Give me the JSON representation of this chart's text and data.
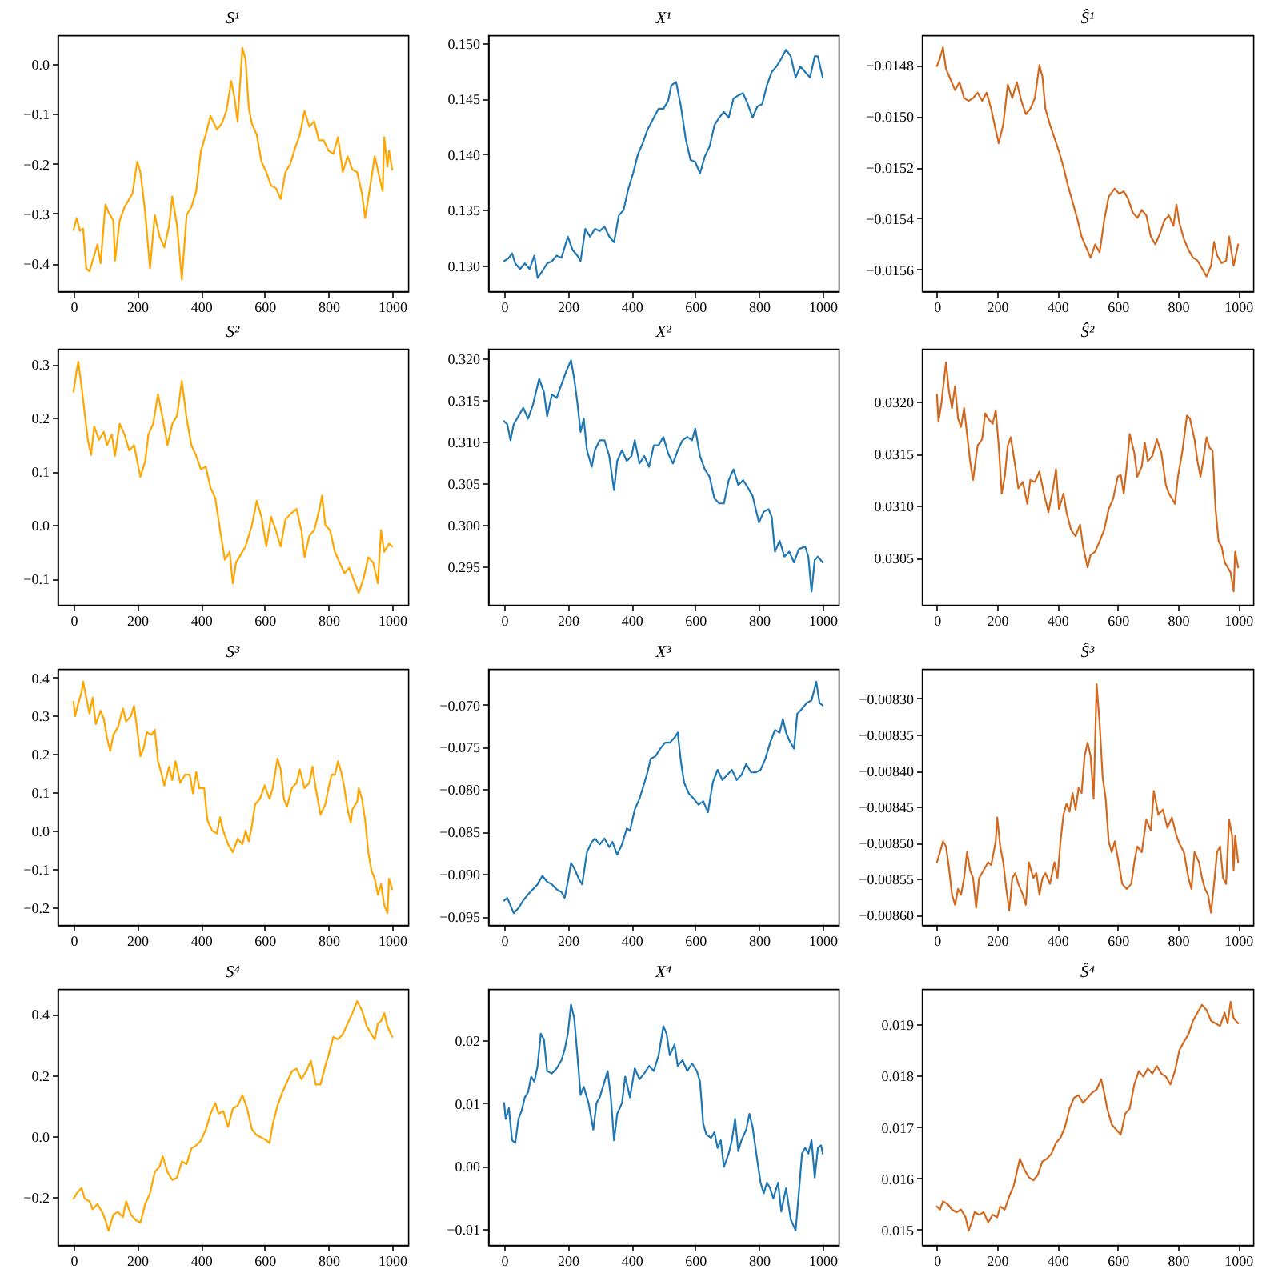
{
  "chart_data": [
    {
      "type": "line",
      "title": "S¹",
      "color": "#ffa500",
      "xlim": [
        -50,
        1050
      ],
      "xticks": [
        0,
        200,
        400,
        600,
        800,
        1000
      ],
      "ylim": [
        -0.456,
        0.058
      ],
      "yticks": [
        {
          "value": -0.4,
          "label": "−0.4"
        },
        {
          "value": -0.3,
          "label": "−0.3"
        },
        {
          "value": -0.2,
          "label": "−0.2"
        },
        {
          "value": -0.1,
          "label": "−0.1"
        },
        {
          "value": 0,
          "label": "0.0"
        }
      ],
      "x": [
        0,
        10,
        20,
        30,
        40,
        50,
        60,
        75,
        85,
        100,
        110,
        125,
        130,
        145,
        160,
        175,
        185,
        200,
        210,
        225,
        240,
        255,
        270,
        285,
        300,
        310,
        325,
        340,
        355,
        370,
        385,
        400,
        415,
        430,
        450,
        465,
        480,
        495,
        505,
        515,
        530,
        540,
        550,
        560,
        575,
        590,
        605,
        620,
        635,
        650,
        665,
        680,
        695,
        710,
        725,
        740,
        755,
        770,
        785,
        800,
        815,
        830,
        845,
        860,
        875,
        890,
        905,
        915,
        930,
        945,
        960,
        970,
        975,
        985,
        990,
        1000
      ],
      "values": [
        -0.333,
        -0.309,
        -0.335,
        -0.33,
        -0.41,
        -0.416,
        -0.395,
        -0.362,
        -0.4,
        -0.282,
        -0.298,
        -0.314,
        -0.395,
        -0.314,
        -0.287,
        -0.271,
        -0.26,
        -0.196,
        -0.217,
        -0.298,
        -0.41,
        -0.303,
        -0.346,
        -0.368,
        -0.325,
        -0.266,
        -0.325,
        -0.432,
        -0.303,
        -0.287,
        -0.255,
        -0.174,
        -0.142,
        -0.104,
        -0.131,
        -0.12,
        -0.094,
        -0.034,
        -0.067,
        -0.115,
        0.032,
        0.009,
        -0.088,
        -0.12,
        -0.142,
        -0.196,
        -0.217,
        -0.244,
        -0.249,
        -0.271,
        -0.217,
        -0.201,
        -0.169,
        -0.142,
        -0.094,
        -0.126,
        -0.115,
        -0.153,
        -0.153,
        -0.174,
        -0.18,
        -0.147,
        -0.217,
        -0.185,
        -0.212,
        -0.217,
        -0.26,
        -0.309,
        -0.249,
        -0.185,
        -0.228,
        -0.255,
        -0.147,
        -0.206,
        -0.174,
        -0.212
      ]
    },
    {
      "type": "line",
      "title": "X¹",
      "color": "#1f77b4",
      "xlim": [
        -50,
        1050
      ],
      "xticks": [
        0,
        200,
        400,
        600,
        800,
        1000
      ],
      "ylim": [
        0.1277,
        0.1507
      ],
      "yticks": [
        {
          "value": 0.13,
          "label": "0.130"
        },
        {
          "value": 0.135,
          "label": "0.135"
        },
        {
          "value": 0.14,
          "label": "0.140"
        },
        {
          "value": 0.145,
          "label": "0.145"
        },
        {
          "value": 0.15,
          "label": "0.150"
        }
      ],
      "x": [
        0,
        15,
        25,
        35,
        50,
        65,
        80,
        95,
        105,
        120,
        135,
        150,
        165,
        180,
        200,
        215,
        230,
        240,
        255,
        270,
        285,
        300,
        315,
        330,
        345,
        360,
        375,
        390,
        405,
        420,
        435,
        450,
        470,
        485,
        500,
        515,
        525,
        540,
        555,
        570,
        585,
        600,
        615,
        630,
        645,
        660,
        675,
        690,
        705,
        720,
        735,
        750,
        765,
        780,
        795,
        810,
        825,
        840,
        855,
        870,
        885,
        900,
        915,
        930,
        945,
        960,
        975,
        985,
        1000
      ],
      "values": [
        0.1304,
        0.1307,
        0.1311,
        0.1302,
        0.1297,
        0.1302,
        0.1297,
        0.1309,
        0.1289,
        0.1295,
        0.1302,
        0.1304,
        0.1309,
        0.1307,
        0.1326,
        0.1314,
        0.1309,
        0.1304,
        0.1333,
        0.1326,
        0.1333,
        0.1331,
        0.1335,
        0.1326,
        0.1321,
        0.1345,
        0.135,
        0.1369,
        0.1383,
        0.14,
        0.141,
        0.1422,
        0.1433,
        0.1441,
        0.1441,
        0.1448,
        0.1462,
        0.1465,
        0.1443,
        0.1414,
        0.1395,
        0.1393,
        0.1383,
        0.1398,
        0.1407,
        0.1426,
        0.1433,
        0.1438,
        0.1433,
        0.145,
        0.1453,
        0.1455,
        0.1445,
        0.1433,
        0.1443,
        0.1445,
        0.1462,
        0.1474,
        0.1479,
        0.1486,
        0.1494,
        0.1488,
        0.1469,
        0.1479,
        0.1474,
        0.1469,
        0.1488,
        0.1488,
        0.1469
      ]
    },
    {
      "type": "line",
      "title": "Ŝ¹",
      "color": "#d2691e",
      "xlim": [
        -50,
        1050
      ],
      "xticks": [
        0,
        200,
        400,
        600,
        800,
        1000
      ],
      "ylim": [
        -0.015685,
        -0.014683
      ],
      "yticks": [
        {
          "value": -0.0156,
          "label": "−0.0156"
        },
        {
          "value": -0.0154,
          "label": "−0.0154"
        },
        {
          "value": -0.0152,
          "label": "−0.0152"
        },
        {
          "value": -0.015,
          "label": "−0.0150"
        },
        {
          "value": -0.0148,
          "label": "−0.0148"
        }
      ],
      "x": [
        0,
        10,
        20,
        30,
        45,
        60,
        75,
        90,
        105,
        120,
        135,
        150,
        165,
        180,
        195,
        205,
        220,
        235,
        250,
        265,
        280,
        295,
        310,
        325,
        340,
        350,
        360,
        375,
        390,
        405,
        420,
        435,
        450,
        465,
        480,
        495,
        510,
        525,
        540,
        555,
        570,
        590,
        605,
        620,
        635,
        650,
        665,
        680,
        695,
        710,
        725,
        740,
        755,
        770,
        785,
        795,
        805,
        820,
        835,
        850,
        865,
        880,
        895,
        910,
        920,
        930,
        945,
        960,
        970,
        985,
        1000
      ],
      "values": [
        -0.014804,
        -0.014773,
        -0.014731,
        -0.014815,
        -0.014856,
        -0.014898,
        -0.014867,
        -0.014929,
        -0.01494,
        -0.014929,
        -0.014908,
        -0.01494,
        -0.014908,
        -0.014971,
        -0.015054,
        -0.015106,
        -0.015033,
        -0.014877,
        -0.014929,
        -0.014867,
        -0.01494,
        -0.014992,
        -0.014971,
        -0.014929,
        -0.0148,
        -0.014846,
        -0.014971,
        -0.015033,
        -0.015085,
        -0.015138,
        -0.0152,
        -0.015273,
        -0.015335,
        -0.015398,
        -0.015471,
        -0.015513,
        -0.015554,
        -0.015502,
        -0.015533,
        -0.015408,
        -0.015315,
        -0.015283,
        -0.015304,
        -0.015294,
        -0.015325,
        -0.015377,
        -0.015398,
        -0.015367,
        -0.015388,
        -0.015471,
        -0.015502,
        -0.01546,
        -0.015408,
        -0.015388,
        -0.015429,
        -0.015346,
        -0.015419,
        -0.015481,
        -0.015523,
        -0.015554,
        -0.015565,
        -0.015596,
        -0.015627,
        -0.015585,
        -0.015492,
        -0.015544,
        -0.015575,
        -0.015565,
        -0.015471,
        -0.015585,
        -0.015502
      ]
    },
    {
      "type": "line",
      "title": "S²",
      "color": "#ffa500",
      "xlim": [
        -50,
        1050
      ],
      "xticks": [
        0,
        200,
        400,
        600,
        800,
        1000
      ],
      "ylim": [
        -0.149,
        0.329
      ],
      "yticks": [
        {
          "value": -0.1,
          "label": "−0.1"
        },
        {
          "value": 0,
          "label": "0.0"
        },
        {
          "value": 0.1,
          "label": "0.1"
        },
        {
          "value": 0.2,
          "label": "0.2"
        },
        {
          "value": 0.3,
          "label": "0.3"
        }
      ],
      "x": [
        0,
        10,
        15,
        25,
        35,
        45,
        55,
        65,
        80,
        95,
        105,
        120,
        130,
        145,
        160,
        175,
        190,
        200,
        210,
        225,
        235,
        250,
        265,
        280,
        295,
        310,
        325,
        340,
        355,
        370,
        385,
        400,
        415,
        430,
        445,
        460,
        475,
        490,
        500,
        510,
        525,
        540,
        560,
        575,
        590,
        605,
        620,
        635,
        650,
        665,
        680,
        700,
        715,
        725,
        740,
        755,
        770,
        780,
        790,
        805,
        820,
        835,
        850,
        865,
        880,
        895,
        910,
        925,
        940,
        955,
        965,
        975,
        990,
        1000
      ],
      "values": [
        0.249,
        0.289,
        0.305,
        0.259,
        0.209,
        0.159,
        0.131,
        0.184,
        0.159,
        0.174,
        0.149,
        0.169,
        0.129,
        0.189,
        0.169,
        0.139,
        0.149,
        0.119,
        0.09,
        0.119,
        0.169,
        0.189,
        0.244,
        0.199,
        0.149,
        0.189,
        0.204,
        0.269,
        0.199,
        0.149,
        0.129,
        0.104,
        0.109,
        0.07,
        0.05,
        -0.01,
        -0.065,
        -0.05,
        -0.109,
        -0.07,
        -0.055,
        -0.04,
        0,
        0.045,
        0.015,
        -0.04,
        0.015,
        -0.01,
        -0.04,
        0.01,
        0.02,
        0.03,
        -0.01,
        -0.06,
        -0.02,
        -0.01,
        0.025,
        0.055,
        0,
        -0.01,
        -0.05,
        -0.07,
        -0.09,
        -0.08,
        -0.104,
        -0.127,
        -0.1,
        -0.06,
        -0.07,
        -0.109,
        -0.01,
        -0.05,
        -0.035,
        -0.04
      ]
    },
    {
      "type": "line",
      "title": "X²",
      "color": "#1f77b4",
      "xlim": [
        -50,
        1050
      ],
      "xticks": [
        0,
        200,
        400,
        600,
        800,
        1000
      ],
      "ylim": [
        0.2904,
        0.3212
      ],
      "yticks": [
        {
          "value": 0.295,
          "label": "0.295"
        },
        {
          "value": 0.3,
          "label": "0.300"
        },
        {
          "value": 0.305,
          "label": "0.305"
        },
        {
          "value": 0.31,
          "label": "0.310"
        },
        {
          "value": 0.315,
          "label": "0.315"
        },
        {
          "value": 0.32,
          "label": "0.320"
        }
      ],
      "x": [
        0,
        10,
        20,
        30,
        45,
        60,
        75,
        90,
        100,
        110,
        125,
        135,
        150,
        165,
        180,
        195,
        210,
        220,
        230,
        240,
        250,
        260,
        275,
        285,
        300,
        315,
        330,
        345,
        355,
        370,
        385,
        400,
        410,
        425,
        440,
        455,
        470,
        485,
        500,
        515,
        530,
        545,
        560,
        575,
        590,
        600,
        615,
        630,
        645,
        660,
        675,
        690,
        705,
        720,
        735,
        750,
        765,
        780,
        790,
        800,
        815,
        830,
        840,
        850,
        865,
        880,
        895,
        910,
        925,
        945,
        955,
        965,
        975,
        985,
        1000
      ],
      "values": [
        0.3125,
        0.3121,
        0.3102,
        0.3121,
        0.3131,
        0.3141,
        0.3128,
        0.3144,
        0.316,
        0.3176,
        0.316,
        0.3131,
        0.3157,
        0.3153,
        0.3169,
        0.3185,
        0.3198,
        0.3176,
        0.3147,
        0.3112,
        0.3128,
        0.309,
        0.307,
        0.309,
        0.3102,
        0.3102,
        0.3083,
        0.3042,
        0.3077,
        0.309,
        0.3077,
        0.3083,
        0.3102,
        0.3074,
        0.3083,
        0.307,
        0.3096,
        0.3096,
        0.3106,
        0.3086,
        0.3074,
        0.309,
        0.3102,
        0.3106,
        0.3102,
        0.3116,
        0.3083,
        0.3067,
        0.3058,
        0.3032,
        0.3026,
        0.3026,
        0.3054,
        0.3067,
        0.3048,
        0.3054,
        0.3045,
        0.3035,
        0.3019,
        0.3003,
        0.3016,
        0.3019,
        0.301,
        0.2968,
        0.2981,
        0.2962,
        0.2968,
        0.2955,
        0.2971,
        0.2974,
        0.2962,
        0.292,
        0.2958,
        0.2962,
        0.2955
      ]
    },
    {
      "type": "line",
      "title": "Ŝ²",
      "color": "#d2691e",
      "xlim": [
        -50,
        1050
      ],
      "xticks": [
        0,
        200,
        400,
        600,
        800,
        1000
      ],
      "ylim": [
        0.03005,
        0.03251
      ],
      "yticks": [
        {
          "value": 0.0305,
          "label": "0.0305"
        },
        {
          "value": 0.031,
          "label": "0.0310"
        },
        {
          "value": 0.0315,
          "label": "0.0315"
        },
        {
          "value": 0.032,
          "label": "0.0320"
        }
      ],
      "x": [
        0,
        5,
        15,
        25,
        30,
        40,
        50,
        60,
        70,
        80,
        90,
        100,
        110,
        120,
        135,
        150,
        160,
        170,
        185,
        195,
        205,
        215,
        225,
        235,
        245,
        260,
        270,
        285,
        300,
        310,
        325,
        340,
        355,
        370,
        385,
        395,
        405,
        420,
        430,
        445,
        460,
        475,
        485,
        500,
        510,
        525,
        540,
        555,
        570,
        585,
        600,
        610,
        620,
        630,
        640,
        655,
        665,
        680,
        690,
        700,
        715,
        730,
        745,
        760,
        770,
        780,
        790,
        800,
        815,
        830,
        840,
        855,
        865,
        875,
        885,
        895,
        905,
        915,
        925,
        935,
        945,
        955,
        965,
        975,
        985,
        990,
        1000
      ],
      "values": [
        0.03207,
        0.03181,
        0.03199,
        0.03225,
        0.03238,
        0.0321,
        0.03194,
        0.03215,
        0.03184,
        0.03176,
        0.03194,
        0.03169,
        0.03143,
        0.03125,
        0.03158,
        0.03164,
        0.03189,
        0.03184,
        0.03179,
        0.03192,
        0.03158,
        0.03112,
        0.03128,
        0.03158,
        0.03166,
        0.03138,
        0.03117,
        0.03123,
        0.03102,
        0.03125,
        0.03123,
        0.03133,
        0.03112,
        0.03094,
        0.03117,
        0.03135,
        0.03097,
        0.03112,
        0.03094,
        0.03077,
        0.03071,
        0.03082,
        0.03061,
        0.03041,
        0.03053,
        0.03056,
        0.03066,
        0.03077,
        0.03097,
        0.03107,
        0.03128,
        0.0313,
        0.03112,
        0.03138,
        0.03169,
        0.03151,
        0.03128,
        0.03138,
        0.03161,
        0.03143,
        0.03148,
        0.03164,
        0.03151,
        0.0312,
        0.03112,
        0.03107,
        0.03102,
        0.03128,
        0.03153,
        0.03187,
        0.03184,
        0.03164,
        0.03143,
        0.03128,
        0.03146,
        0.03166,
        0.03156,
        0.03153,
        0.03097,
        0.03066,
        0.03061,
        0.03046,
        0.03041,
        0.03036,
        0.03018,
        0.03056,
        0.03041
      ]
    },
    {
      "type": "line",
      "title": "S³",
      "color": "#ffa500",
      "xlim": [
        -50,
        1050
      ],
      "xticks": [
        0,
        200,
        400,
        600,
        800,
        1000
      ],
      "ylim": [
        -0.246,
        0.422
      ],
      "yticks": [
        {
          "value": -0.2,
          "label": "−0.2"
        },
        {
          "value": -0.1,
          "label": "−0.1"
        },
        {
          "value": 0,
          "label": "0.0"
        },
        {
          "value": 0.1,
          "label": "0.1"
        },
        {
          "value": 0.2,
          "label": "0.2"
        },
        {
          "value": 0.3,
          "label": "0.3"
        },
        {
          "value": 0.4,
          "label": "0.4"
        }
      ],
      "x": [
        0,
        5,
        15,
        25,
        30,
        40,
        50,
        60,
        70,
        85,
        95,
        105,
        115,
        125,
        140,
        155,
        165,
        180,
        190,
        200,
        210,
        220,
        230,
        245,
        255,
        265,
        275,
        285,
        300,
        310,
        320,
        335,
        350,
        365,
        375,
        385,
        395,
        410,
        420,
        435,
        450,
        460,
        470,
        485,
        500,
        515,
        530,
        540,
        550,
        560,
        570,
        585,
        600,
        615,
        625,
        640,
        650,
        660,
        670,
        685,
        700,
        710,
        725,
        740,
        750,
        760,
        775,
        790,
        800,
        810,
        820,
        830,
        840,
        850,
        860,
        870,
        875,
        890,
        895,
        905,
        915,
        925,
        935,
        945,
        955,
        965,
        975,
        985,
        990,
        1000
      ],
      "values": [
        0.336,
        0.299,
        0.333,
        0.361,
        0.389,
        0.347,
        0.306,
        0.347,
        0.278,
        0.313,
        0.292,
        0.243,
        0.208,
        0.25,
        0.271,
        0.319,
        0.285,
        0.299,
        0.326,
        0.264,
        0.194,
        0.215,
        0.257,
        0.25,
        0.264,
        0.181,
        0.153,
        0.118,
        0.167,
        0.132,
        0.181,
        0.125,
        0.146,
        0.146,
        0.097,
        0.153,
        0.111,
        0.111,
        0.028,
        0,
        -0.007,
        0.035,
        0,
        -0.035,
        -0.056,
        -0.021,
        -0.035,
        0,
        -0.028,
        0.014,
        0.069,
        0.083,
        0.118,
        0.083,
        0.111,
        0.188,
        0.16,
        0.083,
        0.063,
        0.111,
        0.125,
        0.16,
        0.111,
        0.125,
        0.167,
        0.111,
        0.042,
        0.069,
        0.111,
        0.146,
        0.146,
        0.181,
        0.153,
        0.111,
        0.056,
        0.021,
        0.056,
        0.076,
        0.111,
        0.083,
        0.028,
        -0.056,
        -0.104,
        -0.125,
        -0.167,
        -0.139,
        -0.194,
        -0.215,
        -0.125,
        -0.153
      ]
    },
    {
      "type": "line",
      "title": "X³",
      "color": "#1f77b4",
      "xlim": [
        -50,
        1050
      ],
      "xticks": [
        0,
        200,
        400,
        600,
        800,
        1000
      ],
      "ylim": [
        -0.096,
        -0.0658
      ],
      "yticks": [
        {
          "value": -0.095,
          "label": "−0.095"
        },
        {
          "value": -0.09,
          "label": "−0.090"
        },
        {
          "value": -0.085,
          "label": "−0.085"
        },
        {
          "value": -0.08,
          "label": "−0.080"
        },
        {
          "value": -0.075,
          "label": "−0.075"
        },
        {
          "value": -0.07,
          "label": "−0.070"
        }
      ],
      "x": [
        0,
        10,
        20,
        30,
        45,
        60,
        75,
        90,
        105,
        120,
        135,
        150,
        165,
        180,
        190,
        200,
        210,
        220,
        235,
        245,
        260,
        275,
        285,
        300,
        315,
        330,
        340,
        355,
        370,
        385,
        395,
        410,
        425,
        435,
        450,
        460,
        475,
        490,
        505,
        520,
        535,
        545,
        555,
        565,
        580,
        595,
        610,
        625,
        640,
        655,
        670,
        685,
        700,
        715,
        730,
        745,
        760,
        775,
        790,
        805,
        820,
        835,
        850,
        865,
        875,
        885,
        895,
        910,
        920,
        935,
        950,
        965,
        980,
        990,
        1000
      ],
      "values": [
        -0.0931,
        -0.0928,
        -0.0937,
        -0.0946,
        -0.094,
        -0.0931,
        -0.0924,
        -0.0918,
        -0.0912,
        -0.0902,
        -0.0909,
        -0.0912,
        -0.0918,
        -0.0921,
        -0.0928,
        -0.0909,
        -0.0887,
        -0.0893,
        -0.0906,
        -0.0912,
        -0.0874,
        -0.0862,
        -0.0858,
        -0.0865,
        -0.0858,
        -0.0868,
        -0.0862,
        -0.0877,
        -0.0865,
        -0.0846,
        -0.0849,
        -0.0824,
        -0.0811,
        -0.0799,
        -0.078,
        -0.0764,
        -0.0761,
        -0.0752,
        -0.0745,
        -0.0745,
        -0.0739,
        -0.0733,
        -0.0767,
        -0.0792,
        -0.0805,
        -0.0811,
        -0.0818,
        -0.0814,
        -0.0827,
        -0.0792,
        -0.0777,
        -0.0789,
        -0.0783,
        -0.0777,
        -0.0789,
        -0.0783,
        -0.077,
        -0.078,
        -0.078,
        -0.0777,
        -0.0764,
        -0.0745,
        -0.073,
        -0.0733,
        -0.0717,
        -0.0733,
        -0.0742,
        -0.0752,
        -0.0711,
        -0.0705,
        -0.0698,
        -0.0695,
        -0.0673,
        -0.0698,
        -0.0701
      ]
    },
    {
      "type": "line",
      "title": "Ŝ³",
      "color": "#d2691e",
      "xlim": [
        -50,
        1050
      ],
      "xticks": [
        0,
        200,
        400,
        600,
        800,
        1000
      ],
      "ylim": [
        -0.008614,
        -0.008259
      ],
      "yticks": [
        {
          "value": -0.0086,
          "label": "−0.00860"
        },
        {
          "value": -0.00855,
          "label": "−0.00855"
        },
        {
          "value": -0.0085,
          "label": "−0.00850"
        },
        {
          "value": -0.00845,
          "label": "−0.00845"
        },
        {
          "value": -0.0084,
          "label": "−0.00840"
        },
        {
          "value": -0.00835,
          "label": "−0.00835"
        },
        {
          "value": -0.0083,
          "label": "−0.00830"
        }
      ],
      "x": [
        0,
        10,
        20,
        30,
        40,
        50,
        60,
        70,
        80,
        90,
        100,
        110,
        120,
        130,
        140,
        155,
        170,
        180,
        195,
        200,
        210,
        220,
        230,
        240,
        250,
        260,
        270,
        285,
        295,
        305,
        320,
        330,
        340,
        350,
        360,
        375,
        390,
        400,
        410,
        420,
        430,
        440,
        450,
        460,
        470,
        480,
        490,
        500,
        510,
        520,
        530,
        540,
        550,
        560,
        570,
        580,
        590,
        600,
        615,
        630,
        645,
        655,
        665,
        680,
        695,
        710,
        720,
        735,
        750,
        765,
        780,
        795,
        805,
        820,
        835,
        845,
        855,
        870,
        880,
        890,
        900,
        910,
        920,
        930,
        940,
        950,
        960,
        970,
        980,
        985,
        990,
        1000
      ],
      "values": [
        -0.008527,
        -0.008513,
        -0.008498,
        -0.008505,
        -0.008535,
        -0.008572,
        -0.008586,
        -0.008564,
        -0.008572,
        -0.008549,
        -0.008513,
        -0.008538,
        -0.008549,
        -0.00859,
        -0.008549,
        -0.008538,
        -0.008527,
        -0.008531,
        -0.008498,
        -0.008465,
        -0.008505,
        -0.008527,
        -0.008564,
        -0.008594,
        -0.008549,
        -0.008542,
        -0.008557,
        -0.008572,
        -0.008586,
        -0.008527,
        -0.008549,
        -0.008542,
        -0.008572,
        -0.008549,
        -0.008542,
        -0.008557,
        -0.008527,
        -0.008549,
        -0.008498,
        -0.008461,
        -0.008446,
        -0.008457,
        -0.008431,
        -0.008454,
        -0.008424,
        -0.008431,
        -0.00838,
        -0.008361,
        -0.00838,
        -0.008439,
        -0.00828,
        -0.008335,
        -0.008409,
        -0.008439,
        -0.008498,
        -0.008513,
        -0.008498,
        -0.00852,
        -0.008557,
        -0.008564,
        -0.008557,
        -0.008527,
        -0.008505,
        -0.008513,
        -0.008468,
        -0.008483,
        -0.008428,
        -0.008461,
        -0.008454,
        -0.008479,
        -0.008465,
        -0.00849,
        -0.008501,
        -0.008513,
        -0.008549,
        -0.008564,
        -0.008513,
        -0.008527,
        -0.008549,
        -0.008564,
        -0.008572,
        -0.008597,
        -0.008557,
        -0.008513,
        -0.008505,
        -0.008549,
        -0.008557,
        -0.008468,
        -0.00849,
        -0.008538,
        -0.00849,
        -0.008527
      ]
    },
    {
      "type": "line",
      "title": "S⁴",
      "color": "#ffa500",
      "xlim": [
        -50,
        1050
      ],
      "xticks": [
        0,
        200,
        400,
        600,
        800,
        1000
      ],
      "ylim": [
        -0.357,
        0.482
      ],
      "yticks": [
        {
          "value": -0.2,
          "label": "−0.2"
        },
        {
          "value": 0,
          "label": "0.0"
        },
        {
          "value": 0.2,
          "label": "0.2"
        },
        {
          "value": 0.4,
          "label": "0.4"
        }
      ],
      "x": [
        0,
        10,
        25,
        35,
        50,
        60,
        75,
        90,
        100,
        110,
        125,
        140,
        155,
        165,
        180,
        195,
        210,
        225,
        240,
        255,
        270,
        280,
        295,
        310,
        325,
        340,
        355,
        370,
        385,
        400,
        415,
        430,
        445,
        455,
        470,
        485,
        500,
        515,
        530,
        545,
        560,
        575,
        590,
        605,
        615,
        625,
        640,
        655,
        670,
        685,
        700,
        715,
        730,
        745,
        760,
        775,
        790,
        800,
        815,
        830,
        845,
        860,
        875,
        890,
        905,
        920,
        935,
        945,
        955,
        965,
        975,
        985,
        1000
      ],
      "values": [
        -0.205,
        -0.188,
        -0.17,
        -0.205,
        -0.214,
        -0.24,
        -0.223,
        -0.249,
        -0.275,
        -0.31,
        -0.257,
        -0.249,
        -0.266,
        -0.214,
        -0.257,
        -0.275,
        -0.283,
        -0.223,
        -0.188,
        -0.118,
        -0.101,
        -0.066,
        -0.118,
        -0.144,
        -0.136,
        -0.083,
        -0.092,
        -0.04,
        -0.031,
        -0.014,
        0.021,
        0.073,
        0.108,
        0.073,
        0.082,
        0.03,
        0.09,
        0.099,
        0.134,
        0.09,
        0.021,
        0.003,
        -0.005,
        -0.014,
        -0.023,
        0.038,
        0.099,
        0.143,
        0.177,
        0.212,
        0.221,
        0.186,
        0.212,
        0.247,
        0.169,
        0.169,
        0.23,
        0.264,
        0.325,
        0.317,
        0.334,
        0.369,
        0.403,
        0.442,
        0.412,
        0.36,
        0.334,
        0.317,
        0.369,
        0.377,
        0.403,
        0.36,
        0.325
      ]
    },
    {
      "type": "line",
      "title": "X⁴",
      "color": "#1f77b4",
      "xlim": [
        -50,
        1050
      ],
      "xticks": [
        0,
        200,
        400,
        600,
        800,
        1000
      ],
      "ylim": [
        -0.0125,
        0.0281
      ],
      "yticks": [
        {
          "value": -0.01,
          "label": "−0.01"
        },
        {
          "value": 0,
          "label": "0.00"
        },
        {
          "value": 0.01,
          "label": "0.01"
        },
        {
          "value": 0.02,
          "label": "0.02"
        }
      ],
      "x": [
        0,
        5,
        15,
        25,
        35,
        45,
        55,
        65,
        75,
        85,
        95,
        105,
        115,
        125,
        135,
        150,
        165,
        180,
        190,
        200,
        210,
        220,
        230,
        240,
        250,
        265,
        280,
        290,
        300,
        315,
        325,
        335,
        345,
        355,
        370,
        380,
        395,
        410,
        425,
        440,
        455,
        470,
        485,
        500,
        510,
        520,
        535,
        545,
        560,
        575,
        590,
        605,
        615,
        625,
        635,
        650,
        660,
        670,
        680,
        690,
        705,
        715,
        725,
        735,
        745,
        760,
        770,
        780,
        795,
        805,
        815,
        825,
        835,
        845,
        860,
        870,
        885,
        900,
        915,
        925,
        935,
        945,
        955,
        965,
        975,
        985,
        995,
        1000
      ],
      "values": [
        0.01,
        0.0075,
        0.0092,
        0.0041,
        0.0037,
        0.0075,
        0.0088,
        0.0109,
        0.0117,
        0.0142,
        0.0134,
        0.0159,
        0.021,
        0.0201,
        0.0151,
        0.0147,
        0.0155,
        0.0168,
        0.0185,
        0.021,
        0.0256,
        0.0235,
        0.0176,
        0.0113,
        0.0126,
        0.01,
        0.0058,
        0.01,
        0.0109,
        0.0134,
        0.0151,
        0.0109,
        0.0041,
        0.0083,
        0.01,
        0.0142,
        0.0109,
        0.0155,
        0.0138,
        0.0147,
        0.0159,
        0.0151,
        0.0176,
        0.0222,
        0.021,
        0.0176,
        0.0193,
        0.0159,
        0.0168,
        0.0151,
        0.0163,
        0.0151,
        0.0134,
        0.0067,
        0.005,
        0.0045,
        0.0054,
        0.0029,
        0.0041,
        -0.0001,
        0.002,
        0.0041,
        0.0075,
        0.0024,
        0.0041,
        0.0058,
        0.0083,
        0.0062,
        0.0008,
        -0.0026,
        -0.0043,
        -0.0026,
        -0.0035,
        -0.0051,
        -0.0026,
        -0.0072,
        -0.0035,
        -0.0085,
        -0.0102,
        -0.0043,
        0.002,
        0.0029,
        0.002,
        0.0041,
        -0.0018,
        0.0029,
        0.0033,
        0.002
      ]
    },
    {
      "type": "line",
      "title": "Ŝ⁴",
      "color": "#d2691e",
      "xlim": [
        -50,
        1050
      ],
      "xticks": [
        0,
        200,
        400,
        600,
        800,
        1000
      ],
      "ylim": [
        0.0147,
        0.01969
      ],
      "yticks": [
        {
          "value": 0.015,
          "label": "0.015"
        },
        {
          "value": 0.016,
          "label": "0.016"
        },
        {
          "value": 0.017,
          "label": "0.017"
        },
        {
          "value": 0.018,
          "label": "0.018"
        },
        {
          "value": 0.019,
          "label": "0.019"
        }
      ],
      "x": [
        0,
        10,
        20,
        35,
        50,
        65,
        80,
        95,
        105,
        115,
        125,
        140,
        155,
        170,
        185,
        200,
        210,
        225,
        240,
        255,
        265,
        275,
        290,
        305,
        320,
        335,
        350,
        365,
        380,
        395,
        410,
        425,
        440,
        455,
        470,
        485,
        500,
        515,
        530,
        545,
        555,
        565,
        580,
        595,
        610,
        625,
        640,
        655,
        670,
        685,
        700,
        715,
        730,
        745,
        760,
        775,
        790,
        805,
        820,
        835,
        850,
        865,
        880,
        895,
        910,
        925,
        940,
        955,
        965,
        975,
        985,
        1000
      ],
      "values": [
        0.01545,
        0.01539,
        0.01555,
        0.0155,
        0.01539,
        0.01534,
        0.01539,
        0.01524,
        0.01498,
        0.01514,
        0.01534,
        0.01529,
        0.01534,
        0.01514,
        0.01529,
        0.01524,
        0.01545,
        0.01539,
        0.01565,
        0.01586,
        0.01612,
        0.01638,
        0.01617,
        0.01602,
        0.01596,
        0.01607,
        0.01633,
        0.01638,
        0.01648,
        0.01669,
        0.01679,
        0.017,
        0.01736,
        0.01757,
        0.01762,
        0.01747,
        0.01757,
        0.01767,
        0.01773,
        0.01793,
        0.01767,
        0.01736,
        0.01705,
        0.01695,
        0.01685,
        0.01726,
        0.01736,
        0.01783,
        0.01809,
        0.01798,
        0.01814,
        0.01804,
        0.01819,
        0.01804,
        0.01798,
        0.01783,
        0.01809,
        0.0185,
        0.01866,
        0.01881,
        0.01907,
        0.01923,
        0.01938,
        0.01928,
        0.01907,
        0.01902,
        0.01897,
        0.01923,
        0.01902,
        0.01944,
        0.01912,
        0.01902
      ]
    }
  ]
}
